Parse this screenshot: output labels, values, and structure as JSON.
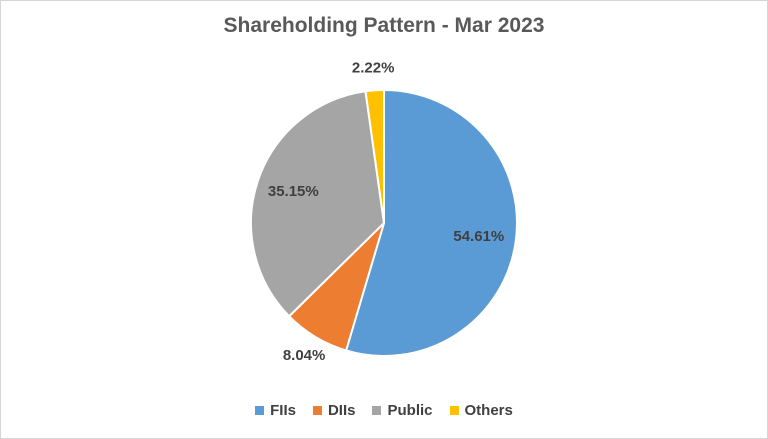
{
  "frame": {
    "background_color": "#ffffff",
    "border_color": "#d6d6d6"
  },
  "chart_data": {
    "type": "pie",
    "title": "Shareholding Pattern - Mar 2023",
    "categories": [
      "FIIs",
      "DIIs",
      "Public",
      "Others"
    ],
    "values": [
      54.61,
      8.04,
      35.15,
      2.22
    ],
    "labels": [
      "54.61%",
      "8.04%",
      "35.15%",
      "2.22%"
    ],
    "colors": [
      "#5B9BD5",
      "#ED7D31",
      "#A5A5A5",
      "#FFC000"
    ],
    "start_angle_deg": 0,
    "direction": "clockwise",
    "legend_position": "bottom",
    "title_color": "#595959",
    "label_color": "#404040",
    "slice_border_color": "#ffffff"
  }
}
